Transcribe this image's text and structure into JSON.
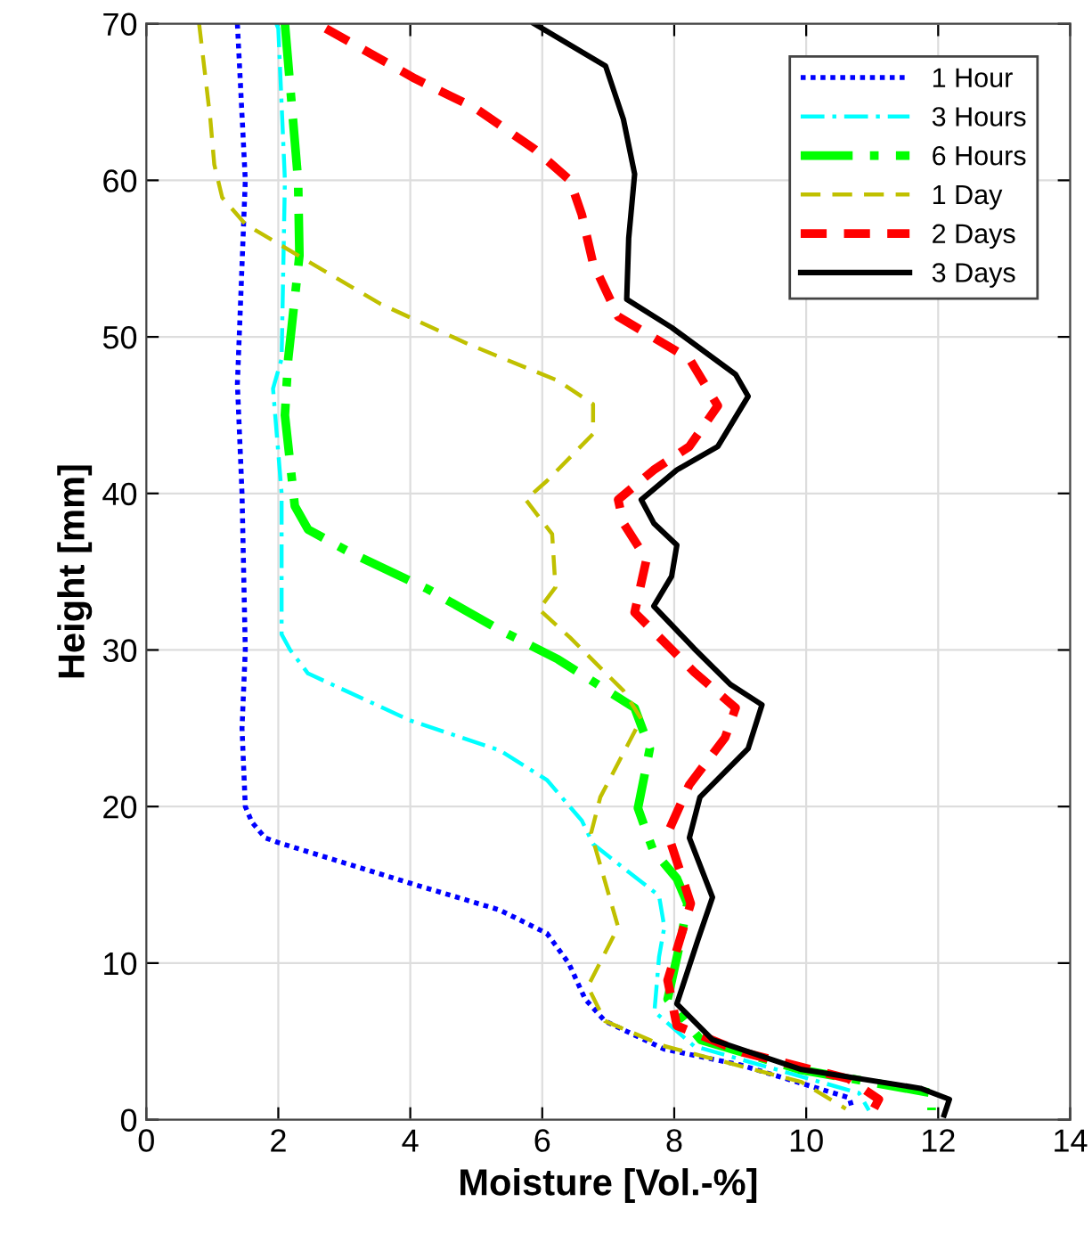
{
  "chart_data": {
    "type": "line",
    "xlabel": "Moisture [Vol.-%]",
    "ylabel": "Height [mm]",
    "xlim": [
      0,
      14
    ],
    "ylim": [
      0,
      70
    ],
    "xticks": [
      0,
      2,
      4,
      6,
      8,
      10,
      12,
      14
    ],
    "yticks": [
      0,
      10,
      20,
      30,
      40,
      50,
      60,
      70
    ],
    "grid": true,
    "legend": "top right",
    "marker": "none",
    "series": [
      {
        "name": "1 Hour",
        "color": "#0000ff",
        "line_style": "dotted",
        "x": [
          1.38,
          1.5,
          1.38,
          1.45,
          1.5,
          1.45,
          1.5,
          1.6,
          1.8,
          2.0,
          4.0,
          5.35,
          6.07,
          6.4,
          6.65,
          6.95,
          7.85,
          9.0,
          10.65,
          10.7
        ],
        "values": [
          70,
          60,
          47,
          40,
          30,
          25,
          20,
          19,
          18,
          17.7,
          15.1,
          13.4,
          11.9,
          10,
          7.7,
          6.3,
          4.5,
          3.5,
          1.4,
          0.7
        ]
      },
      {
        "name": "3 Hours",
        "color": "#00ffff",
        "line_style": "dashdot",
        "x": [
          1.97,
          2.0,
          2.1,
          2.05,
          1.92,
          2.05,
          2.05,
          2.18,
          2.45,
          4.0,
          5.35,
          6.07,
          6.6,
          6.77,
          7.77,
          7.85,
          7.77,
          7.7,
          8.3,
          10.8,
          10.95
        ],
        "values": [
          70,
          69.7,
          60,
          48.6,
          46.7,
          40,
          31,
          30,
          28.5,
          25.5,
          23.6,
          21.7,
          19.1,
          17.6,
          14.3,
          12.3,
          10.4,
          6.9,
          4.7,
          1.7,
          0.6
        ]
      },
      {
        "name": "6 Hours",
        "color": "#00ff00",
        "line_style": "dashdot",
        "x": [
          2.1,
          2.3,
          2.32,
          2.15,
          2.1,
          2.25,
          2.45,
          3.1,
          4.26,
          5.35,
          6.24,
          7.4,
          7.63,
          7.45,
          7.68,
          8.04,
          8.2,
          8.1,
          7.9,
          8.4,
          9.9,
          11.9,
          11.9
        ],
        "values": [
          70,
          60,
          55.2,
          48.6,
          45,
          39.2,
          37.7,
          36.2,
          33.9,
          31.3,
          29.4,
          26.3,
          23.7,
          19.9,
          17.2,
          15.4,
          13.8,
          11.5,
          7.7,
          5.1,
          3.2,
          1.7,
          0.6
        ]
      },
      {
        "name": "1 Day",
        "color": "#c0c000",
        "line_style": "dashed",
        "x": [
          0.8,
          0.97,
          1.03,
          1.15,
          1.5,
          2.3,
          3.55,
          4.9,
          6.24,
          6.77,
          6.77,
          6.07,
          5.75,
          6.15,
          6.2,
          5.95,
          6.42,
          7.23,
          7.5,
          6.88,
          6.74,
          7.15,
          6.69,
          6.95,
          7.85,
          9.93,
          10.6
        ],
        "values": [
          70,
          63.9,
          61,
          58.9,
          57.2,
          55.2,
          52.1,
          49.5,
          47.2,
          45.7,
          43.8,
          40.8,
          39.6,
          37.4,
          34,
          32.6,
          30.8,
          27.4,
          25.6,
          20.6,
          18.3,
          12.3,
          8.5,
          6.3,
          4.7,
          2.4,
          0.7
        ]
      },
      {
        "name": "2 Days",
        "color": "#ff0000",
        "line_style": "dashed",
        "x": [
          2.72,
          4.07,
          4.99,
          5.88,
          6.42,
          6.6,
          6.77,
          7.15,
          8.23,
          8.66,
          8.23,
          7.69,
          7.15,
          7.23,
          7.58,
          7.4,
          8.3,
          8.93,
          8.77,
          8.23,
          7.9,
          8.25,
          7.9,
          8.04,
          9.04,
          10.65,
          11.1,
          11.0
        ],
        "values": [
          69.7,
          66.5,
          64.6,
          62,
          60,
          57.8,
          54.7,
          51.3,
          48.6,
          45.6,
          43,
          41.5,
          39.6,
          38.1,
          35.8,
          32.4,
          28.6,
          26.3,
          24.4,
          21.4,
          18.3,
          13.8,
          8.9,
          6.0,
          4.3,
          2.6,
          1.3,
          0.5
        ]
      },
      {
        "name": "3 Days",
        "color": "#000000",
        "line_style": "solid",
        "x": [
          5.88,
          6.96,
          7.23,
          7.4,
          7.31,
          7.28,
          7.96,
          8.93,
          9.12,
          8.66,
          8.04,
          7.5,
          7.69,
          8.04,
          7.96,
          7.69,
          8.3,
          8.85,
          9.33,
          9.12,
          8.39,
          8.23,
          8.58,
          8.36,
          8.04,
          8.58,
          9.93,
          11.73,
          12.17,
          12.09
        ],
        "values": [
          70,
          67.3,
          63.9,
          60.4,
          56.3,
          52.4,
          50.6,
          47.6,
          46.2,
          43,
          41.5,
          39.6,
          38.1,
          36.7,
          34.7,
          32.8,
          30.1,
          27.8,
          26.5,
          23.7,
          20.6,
          18,
          14.2,
          11.5,
          7.4,
          5.1,
          3.2,
          2.0,
          1.3,
          0.3
        ]
      }
    ]
  }
}
